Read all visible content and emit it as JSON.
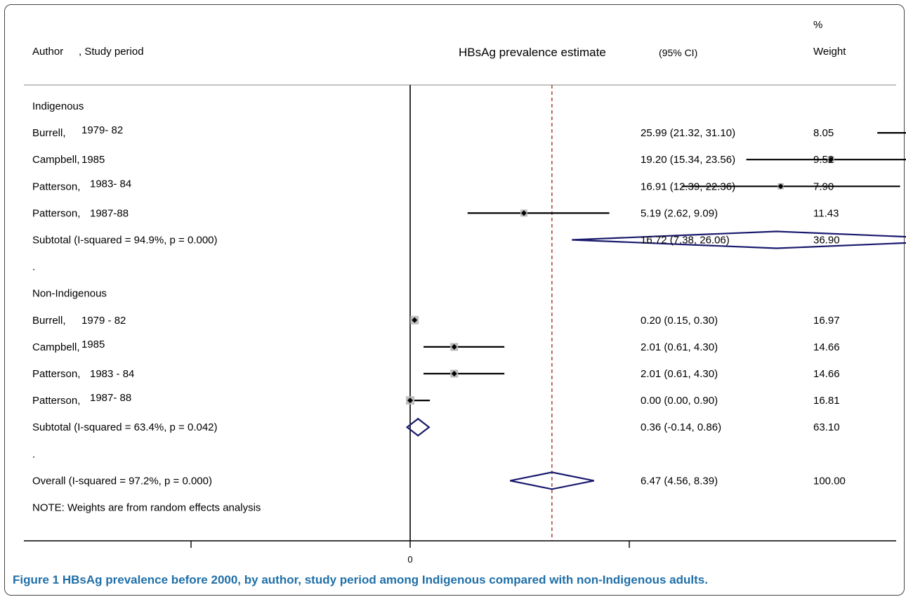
{
  "header": {
    "author_label": "Author",
    "period_label": ", Study period",
    "estimate_label": "HBsAg prevalence estimate",
    "ci_label": "(95% CI)",
    "weight_label_top": "%",
    "weight_label_bottom": "Weight"
  },
  "caption": {
    "figure_label": "Figure 1",
    "text": "HBsAg prevalence before 2000, by author, study period among Indigenous compared with non-Indigenous adults."
  },
  "chart_data": {
    "type": "forest",
    "null_line": 0,
    "overall_estimate": 6.47,
    "x_tick_labels": [
      {
        "value": 0,
        "label": "0"
      }
    ],
    "xlim": [
      -15,
      34
    ],
    "colors": {
      "ci_line": "#000000",
      "weight_box": "#bdbdbd",
      "diamond": "#1a1a6e",
      "overall_line": "#a0302a",
      "axis": "#000000"
    },
    "rows": [
      {
        "kind": "group",
        "label": "Indigenous"
      },
      {
        "kind": "study",
        "author": "Burrell,",
        "period": "1979- 82",
        "estimate": 25.99,
        "lower": 21.32,
        "upper": 31.1,
        "ci_text": "25.99 (21.32, 31.10)",
        "weight": "8.05",
        "arrow_right": true
      },
      {
        "kind": "study",
        "author": "Campbell,",
        "period": "1985",
        "estimate": 19.2,
        "lower": 15.34,
        "upper": 23.56,
        "ci_text": "19.20 (15.34, 23.56)",
        "weight": "9.52"
      },
      {
        "kind": "study",
        "author": "Patterson,",
        "period": "1983- 84",
        "estimate": 16.91,
        "lower": 12.39,
        "upper": 22.36,
        "ci_text": "16.91 (12.39, 22.36)",
        "weight": "7.90"
      },
      {
        "kind": "study",
        "author": "Patterson,",
        "period": "1987-88",
        "estimate": 5.19,
        "lower": 2.62,
        "upper": 9.09,
        "ci_text": "5.19 (2.62, 9.09)",
        "weight": "11.43"
      },
      {
        "kind": "subtotal",
        "label": "Subtotal  (I-squared = 94.9%, p = 0.000)",
        "estimate": 16.72,
        "lower": 7.38,
        "upper": 26.06,
        "ci_text": "16.72 (7.38, 26.06)",
        "weight": "36.90"
      },
      {
        "kind": "spacer",
        "label": "."
      },
      {
        "kind": "group",
        "label": "Non-Indigenous"
      },
      {
        "kind": "study",
        "author": "Burrell,",
        "period": "1979 - 82",
        "estimate": 0.2,
        "lower": 0.15,
        "upper": 0.3,
        "ci_text": "0.20 (0.15, 0.30)",
        "weight": "16.97"
      },
      {
        "kind": "study",
        "author": "Campbell,",
        "period": "1985",
        "estimate": 2.01,
        "lower": 0.61,
        "upper": 4.3,
        "ci_text": "2.01 (0.61, 4.30)",
        "weight": "14.66"
      },
      {
        "kind": "study",
        "author": "Patterson,",
        "period": "1983 - 84",
        "estimate": 2.01,
        "lower": 0.61,
        "upper": 4.3,
        "ci_text": "2.01 (0.61, 4.30)",
        "weight": "14.66"
      },
      {
        "kind": "study",
        "author": "Patterson,",
        "period": "1987- 88",
        "estimate": 0.0,
        "lower": 0.0,
        "upper": 0.9,
        "ci_text": "0.00 (0.00, 0.90)",
        "weight": "16.81"
      },
      {
        "kind": "subtotal",
        "label": "Subtotal  (I-squared = 63.4%, p = 0.042)",
        "estimate": 0.36,
        "lower": -0.14,
        "upper": 0.86,
        "ci_text": "0.36 (-0.14, 0.86)",
        "weight": "63.10"
      },
      {
        "kind": "spacer",
        "label": "."
      },
      {
        "kind": "overall",
        "label": "Overall  (I-squared = 97.2%, p = 0.000)",
        "estimate": 6.47,
        "lower": 4.56,
        "upper": 8.39,
        "ci_text": "6.47 (4.56, 8.39)",
        "weight": "100.00"
      },
      {
        "kind": "note",
        "label": "NOTE: Weights are from random effects analysis"
      }
    ]
  }
}
